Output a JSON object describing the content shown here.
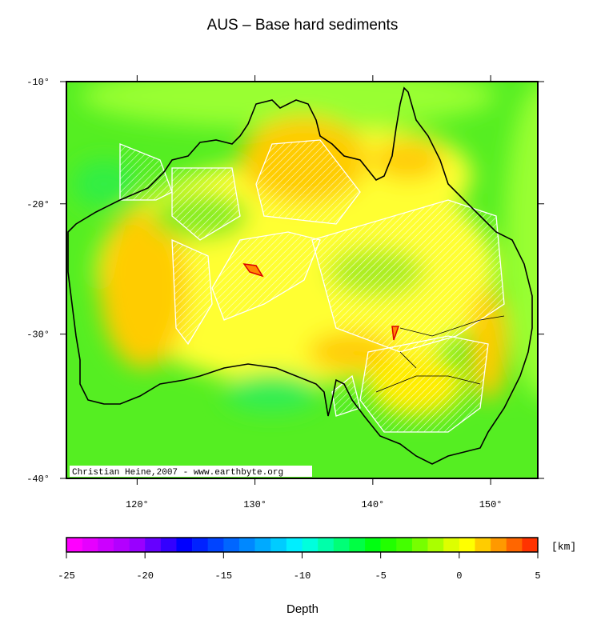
{
  "title": "AUS – Base hard sediments",
  "map": {
    "xlim": [
      114,
      154
    ],
    "ylim": [
      -40,
      -10
    ],
    "xticks": [
      {
        "value": 120,
        "label": "120°"
      },
      {
        "value": 130,
        "label": "130°"
      },
      {
        "value": 140,
        "label": "140°"
      },
      {
        "value": 150,
        "label": "150°"
      }
    ],
    "yticks": [
      {
        "value": -10,
        "label": "-10°"
      },
      {
        "value": -20,
        "label": "-20°"
      },
      {
        "value": -30,
        "label": "-30°"
      },
      {
        "value": -40,
        "label": "-40°"
      }
    ],
    "credit": "Christian Heine,2007 - www.earthbyte.org"
  },
  "colorbar": {
    "ticks": [
      -25,
      -20,
      -15,
      -10,
      -5,
      0,
      5
    ],
    "unit": "[km]",
    "label": "Depth",
    "colors": [
      "#ff00ff",
      "#e600ff",
      "#cc00ff",
      "#b300ff",
      "#9900ff",
      "#6600ff",
      "#3300ff",
      "#0000ff",
      "#0022ff",
      "#0044ff",
      "#0066ff",
      "#0088ff",
      "#00aaff",
      "#00ccff",
      "#00eeff",
      "#00ffdd",
      "#00ffaa",
      "#00ff77",
      "#00ff44",
      "#00ff11",
      "#22ff00",
      "#44ff00",
      "#77ff00",
      "#aaff00",
      "#ddff00",
      "#ffff00",
      "#ffcc00",
      "#ff9900",
      "#ff6600",
      "#ff3300"
    ]
  }
}
